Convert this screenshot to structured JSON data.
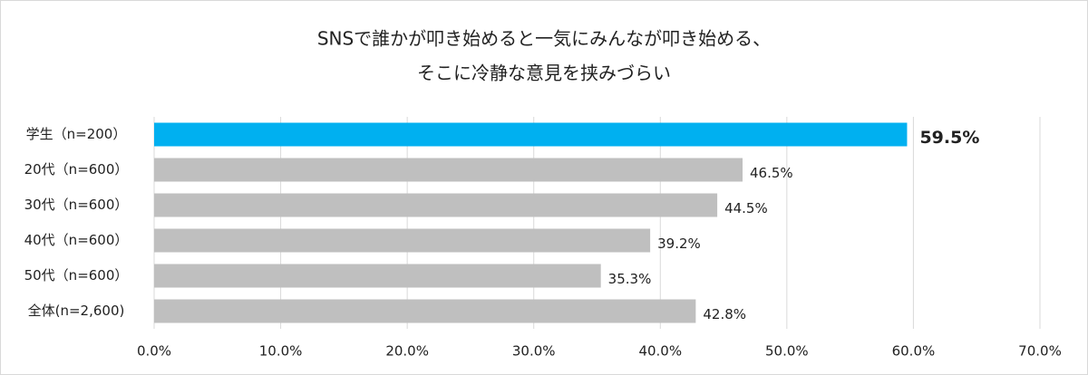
{
  "chart_data": {
    "type": "hbar",
    "title": [
      "SNSで誰かが叩き始めると一気にみんなが叩き始める、",
      "そこに冷静な意見を挟みづらい"
    ],
    "categories": [
      "学生（n=200）",
      "20代（n=600）",
      "30代（n=600）",
      "40代（n=600）",
      "50代（n=600）",
      "全体(n=2,600)"
    ],
    "values": [
      59.5,
      46.5,
      44.5,
      39.2,
      35.3,
      42.8
    ],
    "value_labels": [
      "59.5%",
      "46.5%",
      "44.5%",
      "39.2%",
      "35.3%",
      "42.8%"
    ],
    "value_label_bold": [
      true,
      false,
      false,
      false,
      false,
      false
    ],
    "colors": [
      "#00b0f0",
      "#bfbfbf",
      "#bfbfbf",
      "#bfbfbf",
      "#bfbfbf",
      "#bfbfbf"
    ],
    "xlim": [
      0,
      70
    ],
    "xticks": [
      {
        "value": 0,
        "label": "0.0%"
      },
      {
        "value": 10,
        "label": "10.0%"
      },
      {
        "value": 20,
        "label": "20.0%"
      },
      {
        "value": 30,
        "label": "30.0%"
      },
      {
        "value": 40,
        "label": "40.0%"
      },
      {
        "value": 50,
        "label": "50.0%"
      },
      {
        "value": 60,
        "label": "60.0%"
      },
      {
        "value": 70,
        "label": "70.0%"
      }
    ],
    "grid": true
  }
}
